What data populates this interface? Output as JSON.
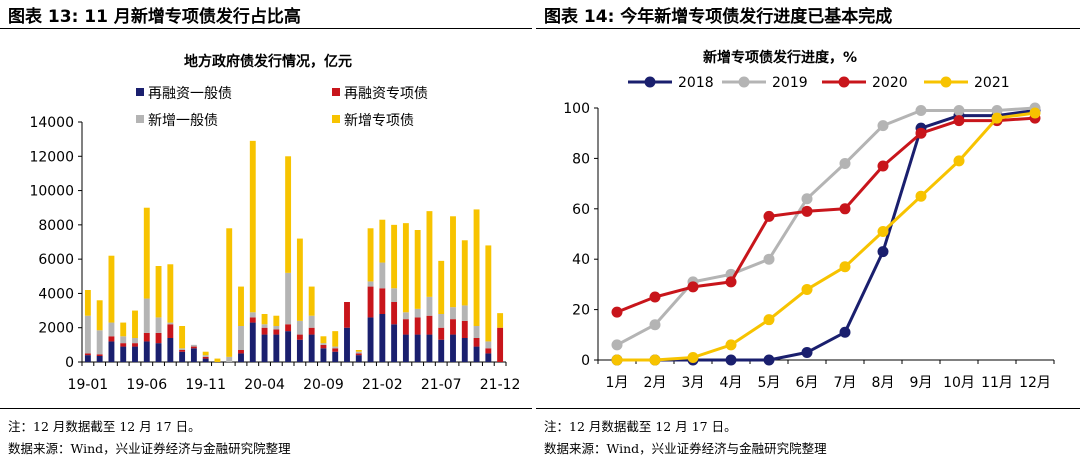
{
  "left": {
    "figure_title": "图表 13: 11 月新增专项债发行占比高",
    "note": "注：12 月数据截至 12 月 17 日。",
    "source": "数据来源：Wind，兴业证券经济与金融研究院整理"
  },
  "right": {
    "figure_title": "图表 14: 今年新增专项债发行进度已基本完成",
    "note": "注：12 月数据截至 12 月 17 日。",
    "source": "数据来源：Wind，兴业证券经济与金融研究院整理"
  },
  "colors": {
    "navy": "#1a1f6e",
    "red": "#c8151b",
    "gray": "#b4b4b4",
    "yellow": "#f7c300"
  },
  "chart_data": [
    {
      "type": "bar",
      "stacked": true,
      "title": "地方政府债发行情况，亿元",
      "ylim": [
        0,
        14000
      ],
      "yticks": [
        0,
        2000,
        4000,
        6000,
        8000,
        10000,
        12000,
        14000
      ],
      "xtick_labels": [
        {
          "index": 0,
          "label": "19-01"
        },
        {
          "index": 5,
          "label": "19-06"
        },
        {
          "index": 10,
          "label": "19-11"
        },
        {
          "index": 15,
          "label": "20-04"
        },
        {
          "index": 20,
          "label": "20-09"
        },
        {
          "index": 25,
          "label": "21-02"
        },
        {
          "index": 30,
          "label": "21-07"
        },
        {
          "index": 35,
          "label": "21-12"
        }
      ],
      "categories": [
        "19-01",
        "19-02",
        "19-03",
        "19-04",
        "19-05",
        "19-06",
        "19-07",
        "19-08",
        "19-09",
        "19-10",
        "19-11",
        "19-12",
        "20-01",
        "20-02",
        "20-03",
        "20-04",
        "20-05",
        "20-06",
        "20-07",
        "20-08",
        "20-09",
        "20-10",
        "20-11",
        "20-12",
        "21-01",
        "21-02",
        "21-03",
        "21-04",
        "21-05",
        "21-06",
        "21-07",
        "21-08",
        "21-09",
        "21-10",
        "21-11",
        "21-12"
      ],
      "series": [
        {
          "name": "再融资一般债",
          "color": "#1a1f6e",
          "values": [
            400,
            350,
            1200,
            900,
            900,
            1200,
            1100,
            1400,
            600,
            800,
            200,
            0,
            0,
            500,
            2300,
            1600,
            1600,
            1800,
            1300,
            1600,
            800,
            600,
            2000,
            400,
            2600,
            2800,
            2200,
            1600,
            1600,
            1600,
            1300,
            1600,
            1400,
            900,
            500,
            0
          ]
        },
        {
          "name": "再融资专项债",
          "color": "#c8151b",
          "values": [
            100,
            100,
            300,
            200,
            200,
            500,
            600,
            800,
            100,
            100,
            100,
            0,
            0,
            200,
            300,
            400,
            300,
            400,
            300,
            400,
            200,
            200,
            1500,
            100,
            1800,
            1500,
            1300,
            900,
            1000,
            1100,
            700,
            900,
            1000,
            500,
            300,
            2000
          ]
        },
        {
          "name": "新增一般债",
          "color": "#b4b4b4",
          "values": [
            2200,
            1400,
            800,
            400,
            300,
            2000,
            900,
            100,
            100,
            100,
            100,
            0,
            300,
            1400,
            300,
            200,
            200,
            3000,
            800,
            700,
            100,
            100,
            0,
            100,
            300,
            1500,
            800,
            400,
            500,
            1100,
            800,
            700,
            900,
            700,
            400,
            0
          ]
        },
        {
          "name": "新增专项债",
          "color": "#f7c300",
          "values": [
            1500,
            1750,
            3900,
            800,
            1600,
            5300,
            3000,
            3400,
            1300,
            0,
            200,
            200,
            7500,
            2300,
            10000,
            600,
            600,
            6800,
            4800,
            1700,
            400,
            900,
            0,
            100,
            3100,
            2500,
            3700,
            5200,
            4600,
            5000,
            3100,
            5300,
            3800,
            6800,
            5600,
            850
          ]
        }
      ]
    },
    {
      "type": "line",
      "title": "新增专项债发行进度，%",
      "ylim": [
        0,
        100
      ],
      "yticks": [
        0,
        20,
        40,
        60,
        80,
        100
      ],
      "categories": [
        "1月",
        "2月",
        "3月",
        "4月",
        "5月",
        "6月",
        "7月",
        "8月",
        "9月",
        "10月",
        "11月",
        "12月"
      ],
      "series": [
        {
          "name": "2018",
          "color": "#1a1f6e",
          "values": [
            0,
            0,
            0,
            0,
            0,
            3,
            11,
            43,
            92,
            97,
            97,
            99
          ]
        },
        {
          "name": "2019",
          "color": "#b4b4b4",
          "values": [
            6,
            14,
            31,
            34,
            40,
            64,
            78,
            93,
            99,
            99,
            99,
            100
          ]
        },
        {
          "name": "2020",
          "color": "#c8151b",
          "values": [
            19,
            25,
            29,
            31,
            57,
            59,
            60,
            77,
            90,
            95,
            95,
            96
          ]
        },
        {
          "name": "2021",
          "color": "#f7c300",
          "values": [
            0,
            0,
            1,
            6,
            16,
            28,
            37,
            51,
            65,
            79,
            96,
            98
          ]
        }
      ]
    }
  ]
}
